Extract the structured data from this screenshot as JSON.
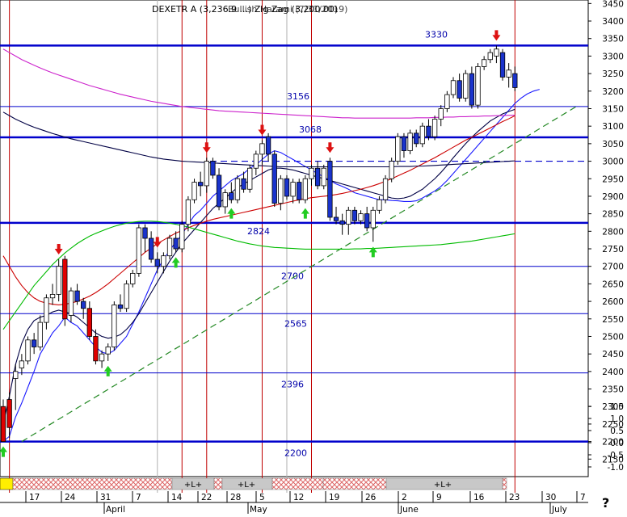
{
  "chart_data": {
    "type": "candlestick",
    "title": "DEXETR A (3,236.9 ...) Zig Zag (3,200.00)",
    "title_overlap_text": "Bullish Harami (7/31/2019)",
    "xlabel": "",
    "ylabel": "",
    "ylim": [
      2100,
      3460
    ],
    "y_ticks": [
      2150,
      2200,
      2250,
      2300,
      2350,
      2400,
      2450,
      2500,
      2550,
      2600,
      2650,
      2700,
      2750,
      2800,
      2850,
      2900,
      2950,
      3000,
      3050,
      3100,
      3150,
      3200,
      3250,
      3300,
      3350,
      3400,
      3450
    ],
    "indicator_ticks": [
      "1.5",
      "1.0",
      "0.5",
      "0.0",
      "-0.5",
      "-1.0"
    ],
    "x_day_labels": [
      "17",
      "24",
      "31",
      "7",
      "14",
      "22",
      "28",
      "5",
      "12",
      "19",
      "26",
      "2",
      "9",
      "16",
      "23",
      "30",
      "7"
    ],
    "x_month_labels": [
      "April",
      "May",
      "June",
      "July"
    ],
    "question_mark": "?",
    "indicator_band_labels": [
      "+L+",
      "+L+",
      "+L+"
    ],
    "horizontal_levels": [
      {
        "value": 3330,
        "label": "3330",
        "weight": "thick"
      },
      {
        "value": 3156,
        "label": "3156",
        "weight": "thin"
      },
      {
        "value": 3068,
        "label": "3068",
        "weight": "thick"
      },
      {
        "value": 2824,
        "label": "2824",
        "weight": "thick"
      },
      {
        "value": 2700,
        "label": "2700",
        "weight": "thin"
      },
      {
        "value": 2565,
        "label": "2565",
        "weight": "thin"
      },
      {
        "value": 2396,
        "label": "2396",
        "weight": "thin"
      },
      {
        "value": 2200,
        "label": "2200",
        "weight": "thick"
      }
    ],
    "dashed_levels": [
      {
        "value": 3000
      }
    ],
    "trendline": {
      "from": {
        "x": 3,
        "y": 2200
      },
      "to": {
        "x": 101,
        "y": 3158
      }
    },
    "series": [
      {
        "values": [
          2200,
          2215,
          2270,
          2310,
          2355,
          2400,
          2450,
          2480,
          2510,
          2530,
          2555,
          2540,
          2530,
          2510,
          2490,
          2470,
          2455,
          2450,
          2460,
          2480,
          2500,
          2535,
          2570,
          2610,
          2650,
          2690,
          2720,
          2745,
          2770,
          2790,
          2820,
          2845,
          2860,
          2880,
          2900,
          2915,
          2930,
          2945,
          2955,
          2965,
          2980,
          2990,
          3005,
          3020,
          3030,
          3025,
          3015,
          3005,
          2995,
          2985,
          2975,
          2965,
          2955,
          2945,
          2935,
          2928,
          2920,
          2910,
          2905,
          2900,
          2895,
          2890,
          2890,
          2888,
          2887,
          2885,
          2885,
          2887,
          2895,
          2905,
          2915,
          2928,
          2945,
          2965,
          2985,
          3005,
          3025,
          3045,
          3065,
          3085,
          3105,
          3125,
          3145,
          3165,
          3180,
          3192,
          3200,
          3205
        ]
      },
      {
        "values": [
          2250,
          2330,
          2420,
          2480,
          2520,
          2545,
          2555,
          2560,
          2570,
          2575,
          2570,
          2565,
          2555,
          2540,
          2525,
          2510,
          2500,
          2495,
          2498,
          2505,
          2520,
          2540,
          2565,
          2595,
          2625,
          2655,
          2685,
          2715,
          2740,
          2765,
          2785,
          2805,
          2825,
          2845,
          2865,
          2880,
          2895,
          2910,
          2925,
          2935,
          2945,
          2955,
          2965,
          2975,
          2980,
          2980,
          2978,
          2975,
          2970,
          2965,
          2960,
          2955,
          2950,
          2945,
          2940,
          2935,
          2930,
          2925,
          2920,
          2915,
          2910,
          2905,
          2900,
          2895,
          2893,
          2895,
          2900,
          2910,
          2920,
          2935,
          2950,
          2968,
          2988,
          3010,
          3030,
          3050,
          3068,
          3085,
          3100,
          3115,
          3125,
          3135,
          3142,
          3148
        ]
      },
      {
        "values": [
          2730,
          2700,
          2670,
          2645,
          2625,
          2610,
          2600,
          2595,
          2592,
          2590,
          2592,
          2595,
          2600,
          2607,
          2615,
          2625,
          2637,
          2650,
          2665,
          2680,
          2695,
          2710,
          2725,
          2740,
          2752,
          2765,
          2775,
          2785,
          2795,
          2802,
          2810,
          2817,
          2823,
          2829,
          2834,
          2838,
          2842,
          2846,
          2850,
          2854,
          2858,
          2862,
          2866,
          2870,
          2874,
          2878,
          2882,
          2886,
          2890,
          2893,
          2896,
          2898,
          2900,
          2902,
          2905,
          2908,
          2912,
          2916,
          2920,
          2925,
          2930,
          2936,
          2943,
          2950,
          2958,
          2966,
          2974,
          2983,
          2992,
          3001,
          3010,
          3020,
          3030,
          3040,
          3050,
          3060,
          3068,
          3077,
          3086,
          3095,
          3104,
          3113,
          3121,
          3130
        ]
      },
      {
        "values": [
          2520,
          2545,
          2570,
          2595,
          2620,
          2645,
          2665,
          2685,
          2705,
          2722,
          2738,
          2752,
          2765,
          2776,
          2786,
          2794,
          2801,
          2808,
          2814,
          2819,
          2823,
          2826,
          2828,
          2829,
          2829,
          2828,
          2826,
          2823,
          2820,
          2816,
          2812,
          2807,
          2802,
          2797,
          2792,
          2787,
          2782,
          2777,
          2772,
          2768,
          2764,
          2761,
          2758,
          2756,
          2754,
          2753,
          2752,
          2751,
          2750,
          2749,
          2749,
          2749,
          2749,
          2749,
          2749,
          2749,
          2749,
          2750,
          2750,
          2751,
          2751,
          2752,
          2753,
          2754,
          2755,
          2756,
          2757,
          2758,
          2759,
          2760,
          2761,
          2762,
          2764,
          2766,
          2768,
          2770,
          2772,
          2775,
          2778,
          2781,
          2784,
          2787,
          2790,
          2793
        ]
      },
      {
        "values": [
          3320,
          3310,
          3300,
          3290,
          3282,
          3274,
          3266,
          3259,
          3252,
          3246,
          3240,
          3234,
          3228,
          3222,
          3216,
          3211,
          3206,
          3201,
          3196,
          3191,
          3187,
          3183,
          3179,
          3175,
          3171,
          3168,
          3165,
          3162,
          3159,
          3156,
          3154,
          3152,
          3150,
          3148,
          3146,
          3144,
          3143,
          3142,
          3141,
          3140,
          3139,
          3138,
          3137,
          3136,
          3135,
          3134,
          3133,
          3132,
          3131,
          3130,
          3129,
          3128,
          3127,
          3126,
          3125,
          3124,
          3124,
          3123,
          3123,
          3123,
          3123,
          3123,
          3123,
          3123,
          3123,
          3123,
          3123,
          3124,
          3124,
          3124,
          3125,
          3125,
          3126,
          3126,
          3127,
          3127,
          3128,
          3128,
          3129,
          3129,
          3130,
          3130,
          3131,
          3131
        ]
      },
      {
        "values": [
          3140,
          3130,
          3120,
          3112,
          3104,
          3097,
          3091,
          3085,
          3079,
          3074,
          3069,
          3064,
          3060,
          3056,
          3052,
          3048,
          3044,
          3040,
          3036,
          3032,
          3028,
          3024,
          3020,
          3016,
          3012,
          3009,
          3006,
          3004,
          3002,
          3000,
          2999,
          2998,
          2997,
          2996,
          2995,
          2994,
          2993,
          2992,
          2991,
          2990,
          2989,
          2988,
          2987,
          2986,
          2985,
          2984,
          2984,
          2984,
          2984,
          2984,
          2984,
          2984,
          2984,
          2984,
          2984,
          2984,
          2984,
          2984,
          2984,
          2984,
          2984,
          2984,
          2984,
          2984,
          2985,
          2985,
          2985,
          2986,
          2986,
          2987,
          2988,
          2989,
          2990,
          2991,
          2992,
          2993,
          2994,
          2995,
          2996,
          2997,
          2998,
          2999,
          3000,
          3001
        ]
      }
    ],
    "candles": [
      {
        "o": 2300,
        "h": 2320,
        "l": 2200,
        "c": 2200
      },
      {
        "o": 2320,
        "h": 2340,
        "l": 2210,
        "c": 2240
      },
      {
        "o": 2380,
        "h": 2420,
        "l": 2290,
        "c": 2400
      },
      {
        "o": 2410,
        "h": 2450,
        "l": 2390,
        "c": 2430
      },
      {
        "o": 2430,
        "h": 2500,
        "l": 2420,
        "c": 2490
      },
      {
        "o": 2490,
        "h": 2510,
        "l": 2450,
        "c": 2470
      },
      {
        "o": 2470,
        "h": 2560,
        "l": 2460,
        "c": 2540
      },
      {
        "o": 2540,
        "h": 2620,
        "l": 2520,
        "c": 2610
      },
      {
        "o": 2610,
        "h": 2650,
        "l": 2590,
        "c": 2620
      },
      {
        "o": 2620,
        "h": 2720,
        "l": 2600,
        "c": 2700
      },
      {
        "o": 2720,
        "h": 2730,
        "l": 2530,
        "c": 2550
      },
      {
        "o": 2560,
        "h": 2640,
        "l": 2540,
        "c": 2630
      },
      {
        "o": 2630,
        "h": 2650,
        "l": 2590,
        "c": 2600
      },
      {
        "o": 2600,
        "h": 2610,
        "l": 2550,
        "c": 2580
      },
      {
        "o": 2580,
        "h": 2600,
        "l": 2490,
        "c": 2500
      },
      {
        "o": 2500,
        "h": 2520,
        "l": 2420,
        "c": 2430
      },
      {
        "o": 2430,
        "h": 2460,
        "l": 2410,
        "c": 2450
      },
      {
        "o": 2450,
        "h": 2480,
        "l": 2430,
        "c": 2470
      },
      {
        "o": 2470,
        "h": 2600,
        "l": 2460,
        "c": 2590
      },
      {
        "o": 2590,
        "h": 2620,
        "l": 2570,
        "c": 2580
      },
      {
        "o": 2580,
        "h": 2660,
        "l": 2570,
        "c": 2650
      },
      {
        "o": 2650,
        "h": 2690,
        "l": 2640,
        "c": 2680
      },
      {
        "o": 2680,
        "h": 2820,
        "l": 2670,
        "c": 2810
      },
      {
        "o": 2810,
        "h": 2820,
        "l": 2740,
        "c": 2780
      },
      {
        "o": 2780,
        "h": 2800,
        "l": 2710,
        "c": 2720
      },
      {
        "o": 2720,
        "h": 2740,
        "l": 2680,
        "c": 2700
      },
      {
        "o": 2700,
        "h": 2740,
        "l": 2680,
        "c": 2730
      },
      {
        "o": 2730,
        "h": 2790,
        "l": 2720,
        "c": 2780
      },
      {
        "o": 2780,
        "h": 2800,
        "l": 2740,
        "c": 2750
      },
      {
        "o": 2750,
        "h": 2830,
        "l": 2740,
        "c": 2820
      },
      {
        "o": 2820,
        "h": 2900,
        "l": 2800,
        "c": 2890
      },
      {
        "o": 2890,
        "h": 2950,
        "l": 2880,
        "c": 2940
      },
      {
        "o": 2940,
        "h": 2970,
        "l": 2900,
        "c": 2930
      },
      {
        "o": 2930,
        "h": 3010,
        "l": 2910,
        "c": 3000
      },
      {
        "o": 3000,
        "h": 3010,
        "l": 2950,
        "c": 2960
      },
      {
        "o": 2960,
        "h": 2980,
        "l": 2860,
        "c": 2870
      },
      {
        "o": 2870,
        "h": 2920,
        "l": 2850,
        "c": 2910
      },
      {
        "o": 2910,
        "h": 2940,
        "l": 2880,
        "c": 2890
      },
      {
        "o": 2890,
        "h": 2960,
        "l": 2880,
        "c": 2950
      },
      {
        "o": 2950,
        "h": 2970,
        "l": 2910,
        "c": 2920
      },
      {
        "o": 2920,
        "h": 2990,
        "l": 2910,
        "c": 2980
      },
      {
        "o": 2980,
        "h": 3030,
        "l": 2960,
        "c": 3020
      },
      {
        "o": 3020,
        "h": 3060,
        "l": 2990,
        "c": 3050
      },
      {
        "o": 3070,
        "h": 3080,
        "l": 3000,
        "c": 3020
      },
      {
        "o": 3020,
        "h": 3030,
        "l": 2870,
        "c": 2880
      },
      {
        "o": 2880,
        "h": 2960,
        "l": 2860,
        "c": 2950
      },
      {
        "o": 2950,
        "h": 2960,
        "l": 2890,
        "c": 2900
      },
      {
        "o": 2900,
        "h": 2950,
        "l": 2880,
        "c": 2940
      },
      {
        "o": 2940,
        "h": 2950,
        "l": 2880,
        "c": 2890
      },
      {
        "o": 2890,
        "h": 2960,
        "l": 2880,
        "c": 2950
      },
      {
        "o": 2950,
        "h": 2990,
        "l": 2930,
        "c": 2980
      },
      {
        "o": 2980,
        "h": 3000,
        "l": 2920,
        "c": 2930
      },
      {
        "o": 2930,
        "h": 2990,
        "l": 2920,
        "c": 2980
      },
      {
        "o": 3000,
        "h": 3010,
        "l": 2830,
        "c": 2840
      },
      {
        "o": 2840,
        "h": 2870,
        "l": 2820,
        "c": 2830
      },
      {
        "o": 2830,
        "h": 2850,
        "l": 2790,
        "c": 2820
      },
      {
        "o": 2820,
        "h": 2870,
        "l": 2790,
        "c": 2860
      },
      {
        "o": 2860,
        "h": 2870,
        "l": 2820,
        "c": 2830
      },
      {
        "o": 2830,
        "h": 2860,
        "l": 2820,
        "c": 2850
      },
      {
        "o": 2850,
        "h": 2870,
        "l": 2800,
        "c": 2810
      },
      {
        "o": 2810,
        "h": 2870,
        "l": 2770,
        "c": 2860
      },
      {
        "o": 2860,
        "h": 2900,
        "l": 2850,
        "c": 2890
      },
      {
        "o": 2890,
        "h": 2960,
        "l": 2880,
        "c": 2950
      },
      {
        "o": 2950,
        "h": 3010,
        "l": 2940,
        "c": 3000
      },
      {
        "o": 3000,
        "h": 3080,
        "l": 2990,
        "c": 3070
      },
      {
        "o": 3070,
        "h": 3080,
        "l": 3010,
        "c": 3030
      },
      {
        "o": 3030,
        "h": 3090,
        "l": 3020,
        "c": 3080
      },
      {
        "o": 3080,
        "h": 3090,
        "l": 3040,
        "c": 3050
      },
      {
        "o": 3050,
        "h": 3110,
        "l": 3040,
        "c": 3100
      },
      {
        "o": 3100,
        "h": 3120,
        "l": 3060,
        "c": 3070
      },
      {
        "o": 3070,
        "h": 3130,
        "l": 3060,
        "c": 3120
      },
      {
        "o": 3120,
        "h": 3160,
        "l": 3100,
        "c": 3150
      },
      {
        "o": 3150,
        "h": 3200,
        "l": 3140,
        "c": 3190
      },
      {
        "o": 3190,
        "h": 3240,
        "l": 3180,
        "c": 3230
      },
      {
        "o": 3230,
        "h": 3250,
        "l": 3170,
        "c": 3180
      },
      {
        "o": 3180,
        "h": 3260,
        "l": 3170,
        "c": 3250
      },
      {
        "o": 3250,
        "h": 3270,
        "l": 3150,
        "c": 3160
      },
      {
        "o": 3160,
        "h": 3280,
        "l": 3150,
        "c": 3270
      },
      {
        "o": 3270,
        "h": 3300,
        "l": 3260,
        "c": 3290
      },
      {
        "o": 3290,
        "h": 3320,
        "l": 3280,
        "c": 3310
      },
      {
        "o": 3300,
        "h": 3330,
        "l": 3280,
        "c": 3320
      },
      {
        "o": 3310,
        "h": 3320,
        "l": 3230,
        "c": 3240
      },
      {
        "o": 3240,
        "h": 3280,
        "l": 3210,
        "c": 3260
      },
      {
        "o": 3250,
        "h": 3270,
        "l": 3200,
        "c": 3210
      }
    ],
    "signals": [
      {
        "i": 0,
        "dir": "up"
      },
      {
        "i": 9,
        "dir": "down"
      },
      {
        "i": 17,
        "dir": "up"
      },
      {
        "i": 25,
        "dir": "down"
      },
      {
        "i": 28,
        "dir": "up"
      },
      {
        "i": 33,
        "dir": "down"
      },
      {
        "i": 37,
        "dir": "up"
      },
      {
        "i": 42,
        "dir": "down"
      },
      {
        "i": 49,
        "dir": "up"
      },
      {
        "i": 53,
        "dir": "down"
      },
      {
        "i": 60,
        "dir": "up"
      },
      {
        "i": 80,
        "dir": "down"
      }
    ],
    "vertical_markers": [
      {
        "i": 1,
        "color": "#c00000"
      },
      {
        "i": 29,
        "color": "#c00000"
      },
      {
        "i": 33,
        "color": "#c00000"
      },
      {
        "i": 42,
        "color": "#c00000"
      },
      {
        "i": 50,
        "color": "#c00000"
      },
      {
        "i": 83,
        "color": "#c00000"
      },
      {
        "i": 25,
        "color": "#b0b0b0"
      },
      {
        "i": 46,
        "color": "#b0b0b0"
      }
    ]
  },
  "colors": {
    "up": "#ffffff",
    "down": "#1a33cc",
    "red_candle": "#e00000",
    "level_line": "#0000cc",
    "ma_black": "#0000cc",
    "ma_blue": "#1a1aff",
    "ma_red": "#cc0000",
    "ma_green": "#00bb00",
    "ma_magenta": "#cc22cc",
    "ma_navy": "#000044",
    "trend": "#228822",
    "axis_text": "#000000",
    "label_blue": "#0000aa"
  }
}
